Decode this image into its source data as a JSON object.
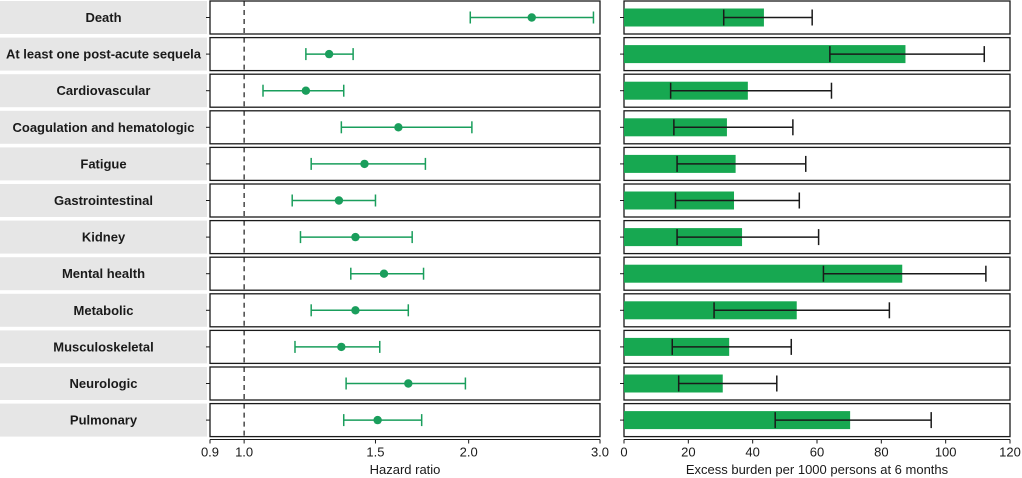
{
  "chart_data": [
    {
      "type": "scatter",
      "subtype": "forest-plot",
      "xlabel": "Hazard ratio",
      "xlim": [
        0.9,
        3.0
      ],
      "xscale": "log",
      "xticks": [
        0.9,
        1.0,
        1.5,
        2.0,
        3.0
      ],
      "xtick_labels": [
        "0.9",
        "1.0",
        "1.5",
        "2.0",
        "3.0"
      ],
      "reference_line": 1.0,
      "color": "#1a9e5c",
      "categories": [
        "Death",
        "At least one post-acute sequela",
        "Cardiovascular",
        "Coagulation and hematologic",
        "Fatigue",
        "Gastrointestinal",
        "Kidney",
        "Mental health",
        "Metabolic",
        "Musculoskeletal",
        "Neurologic",
        "Pulmonary"
      ],
      "estimates": [
        2.43,
        1.3,
        1.21,
        1.61,
        1.45,
        1.34,
        1.41,
        1.54,
        1.41,
        1.35,
        1.66,
        1.51
      ],
      "lower": [
        2.01,
        1.21,
        1.06,
        1.35,
        1.23,
        1.16,
        1.19,
        1.39,
        1.23,
        1.17,
        1.37,
        1.36
      ],
      "upper": [
        2.94,
        1.4,
        1.36,
        2.02,
        1.75,
        1.5,
        1.68,
        1.74,
        1.66,
        1.52,
        1.98,
        1.73
      ]
    },
    {
      "type": "bar",
      "orientation": "horizontal",
      "xlabel": "Excess burden per 1000 persons at 6 months",
      "xlim": [
        0,
        120
      ],
      "xticks": [
        0,
        20,
        40,
        60,
        80,
        100,
        120
      ],
      "xtick_labels": [
        "0",
        "20",
        "40",
        "60",
        "80",
        "100",
        "120"
      ],
      "color": "#17a851",
      "categories": [
        "Death",
        "At least one post-acute sequela",
        "Cardiovascular",
        "Coagulation and hematologic",
        "Fatigue",
        "Gastrointestinal",
        "Kidney",
        "Mental health",
        "Metabolic",
        "Musculoskeletal",
        "Neurologic",
        "Pulmonary"
      ],
      "values": [
        43.5,
        87.5,
        38.5,
        32.0,
        34.7,
        34.2,
        36.7,
        86.5,
        53.7,
        32.7,
        30.7,
        70.3
      ],
      "lower": [
        31.0,
        64.0,
        14.5,
        15.5,
        16.5,
        16.0,
        16.5,
        62.0,
        28.0,
        15.0,
        17.0,
        47.0
      ],
      "upper": [
        58.5,
        112.0,
        64.5,
        52.5,
        56.5,
        54.5,
        60.5,
        112.5,
        82.5,
        52.0,
        47.5,
        95.5
      ]
    }
  ]
}
